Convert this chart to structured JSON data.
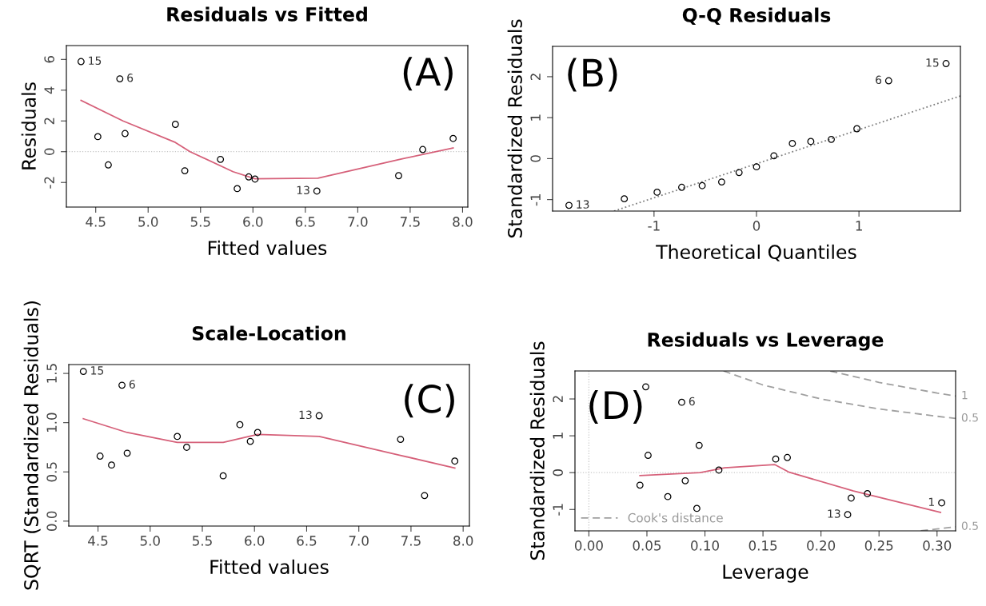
{
  "chart_data": [
    {
      "type": "scatter",
      "title": "Residuals vs Fitted",
      "xlabel": "Fitted values",
      "ylabel": "Residuals",
      "xlim": [
        4.22,
        8.05
      ],
      "ylim": [
        -3.6,
        6.9
      ],
      "xticks": [
        {
          "value": 4.5,
          "label": "4.5"
        },
        {
          "value": 5,
          "label": "5.0"
        },
        {
          "value": 5.5,
          "label": "5.5"
        },
        {
          "value": 6,
          "label": "6.0"
        },
        {
          "value": 6.5,
          "label": "6.5"
        },
        {
          "value": 7,
          "label": "7.0"
        },
        {
          "value": 7.5,
          "label": "7.5"
        },
        {
          "value": 8,
          "label": "8.0"
        }
      ],
      "yticks": [
        -2,
        0,
        2,
        4,
        6
      ],
      "grid": false,
      "series": [
        {
          "marker": "circle",
          "color": "#000000",
          "x": [
            4.36,
            4.52,
            4.62,
            4.73,
            4.78,
            5.26,
            5.35,
            5.69,
            5.85,
            5.96,
            6.02,
            6.61,
            7.39,
            7.62,
            7.91
          ],
          "values": [
            5.86,
            0.98,
            -0.86,
            4.74,
            1.18,
            1.78,
            -1.24,
            -0.5,
            -2.4,
            -1.64,
            -1.78,
            -2.56,
            -1.56,
            0.14,
            0.86
          ]
        },
        {
          "type": "line",
          "color": "#d6617a",
          "line_style": "solid",
          "x": [
            4.36,
            4.76,
            5.26,
            5.4,
            5.81,
            6.02,
            6.62,
            7.4,
            7.91
          ],
          "values": [
            3.34,
            2.0,
            0.6,
            0,
            -1.3,
            -1.76,
            -1.72,
            -0.5,
            0.24
          ]
        }
      ],
      "ref_lines": [
        {
          "axis": "y",
          "value": 0,
          "color": "#c8c8c8",
          "line_style": "dotted"
        }
      ],
      "annotations": [
        "(A)",
        {
          "text": "15",
          "x": 4.36,
          "y": 5.86
        },
        {
          "text": "6",
          "x": 4.73,
          "y": 4.74
        },
        {
          "text": "13",
          "x": 6.61,
          "y": -2.56
        }
      ]
    },
    {
      "type": "scatter",
      "title": "Q-Q Residuals",
      "xlabel": "Theoretical Quantiles",
      "ylabel": "Standardized Residuals",
      "xlim": [
        -1.99,
        1.99
      ],
      "ylim": [
        -1.28,
        2.74
      ],
      "xticks": [
        -1,
        0,
        1
      ],
      "yticks": [
        -1,
        0,
        1,
        2
      ],
      "grid": false,
      "series": [
        {
          "marker": "circle",
          "color": "#000000",
          "x": [
            -1.83,
            -1.29,
            -0.97,
            -0.73,
            -0.53,
            -0.34,
            -0.17,
            0,
            0.17,
            0.35,
            0.53,
            0.73,
            0.98,
            1.29,
            1.85
          ],
          "values": [
            -1.14,
            -0.98,
            -0.82,
            -0.7,
            -0.66,
            -0.57,
            -0.34,
            -0.2,
            0.07,
            0.37,
            0.42,
            0.47,
            0.73,
            1.9,
            2.32
          ]
        },
        {
          "type": "line",
          "color": "#808080",
          "line_style": "dotted",
          "x": [
            -1.39,
            1.99
          ],
          "values": [
            -1.28,
            1.53
          ]
        }
      ],
      "annotations": [
        "(B)",
        {
          "text": "13",
          "x": -1.83,
          "y": -1.14
        },
        {
          "text": "6",
          "x": 1.29,
          "y": 1.9
        },
        {
          "text": "15",
          "x": 1.85,
          "y": 2.32
        }
      ]
    },
    {
      "type": "scatter",
      "title": "Scale-Location",
      "xlabel": "Fitted values",
      "ylabel": "SQRT (Standardized Residuals)",
      "xlim": [
        4.22,
        8.06
      ],
      "ylim": [
        -0.05,
        1.59
      ],
      "xticks": [
        {
          "value": 4.5,
          "label": "4.5"
        },
        {
          "value": 5,
          "label": "5.0"
        },
        {
          "value": 5.5,
          "label": "5.5"
        },
        {
          "value": 6,
          "label": "6.0"
        },
        {
          "value": 6.5,
          "label": "6.5"
        },
        {
          "value": 7,
          "label": "7.0"
        },
        {
          "value": 7.5,
          "label": "7.5"
        },
        {
          "value": 8,
          "label": "8.0"
        }
      ],
      "yticks": [
        {
          "value": 0,
          "label": "0.0"
        },
        {
          "value": 0.5,
          "label": "0.5"
        },
        {
          "value": 1,
          "label": "1.0"
        },
        {
          "value": 1.5,
          "label": "1.5"
        }
      ],
      "grid": false,
      "series": [
        {
          "marker": "circle",
          "color": "#000000",
          "x": [
            4.36,
            4.52,
            4.63,
            4.73,
            4.78,
            5.26,
            5.35,
            5.7,
            5.86,
            5.96,
            6.03,
            6.62,
            7.4,
            7.63,
            7.92
          ],
          "values": [
            1.52,
            0.66,
            0.57,
            1.38,
            0.69,
            0.86,
            0.75,
            0.46,
            0.98,
            0.81,
            0.9,
            1.07,
            0.83,
            0.26,
            0.61
          ]
        },
        {
          "type": "line",
          "color": "#d6617a",
          "line_style": "solid",
          "x": [
            4.36,
            4.78,
            5.26,
            5.7,
            6.03,
            6.62,
            7.39,
            7.92
          ],
          "values": [
            1.04,
            0.9,
            0.8,
            0.8,
            0.88,
            0.86,
            0.67,
            0.54
          ]
        }
      ],
      "annotations": [
        "(C)",
        {
          "text": "15",
          "x": 4.36,
          "y": 1.52
        },
        {
          "text": "6",
          "x": 4.73,
          "y": 1.38
        },
        {
          "text": "13",
          "x": 6.62,
          "y": 1.07
        }
      ]
    },
    {
      "type": "scatter",
      "title": "Residuals vs Leverage",
      "xlabel": "Leverage",
      "ylabel": "Standardized Residuals",
      "xlim": [
        -0.012,
        0.316
      ],
      "ylim": [
        -1.58,
        2.76
      ],
      "xticks": [
        {
          "value": 0,
          "label": "0.00"
        },
        {
          "value": 0.05,
          "label": "0.05"
        },
        {
          "value": 0.1,
          "label": "0.10"
        },
        {
          "value": 0.15,
          "label": "0.15"
        },
        {
          "value": 0.2,
          "label": "0.20"
        },
        {
          "value": 0.25,
          "label": "0.25"
        },
        {
          "value": 0.3,
          "label": "0.30"
        }
      ],
      "yticks": [
        -1,
        0,
        1,
        2
      ],
      "grid": false,
      "legend": "bottom left",
      "series": [
        {
          "marker": "circle",
          "color": "#000000",
          "x": [
            0.049,
            0.051,
            0.044,
            0.068,
            0.08,
            0.083,
            0.093,
            0.095,
            0.112,
            0.161,
            0.171,
            0.223,
            0.226,
            0.24,
            0.304
          ],
          "values": [
            2.33,
            0.47,
            -0.34,
            -0.65,
            1.91,
            -0.22,
            -0.97,
            0.74,
            0.07,
            0.37,
            0.41,
            -1.14,
            -0.69,
            -0.57,
            -0.82
          ]
        },
        {
          "type": "line",
          "color": "#d6617a",
          "line_style": "solid",
          "x": [
            0.044,
            0.096,
            0.117,
            0.16,
            0.172,
            0.228,
            0.303
          ],
          "values": [
            -0.08,
            0,
            0.13,
            0.22,
            0.02,
            -0.5,
            -1.08
          ]
        },
        {
          "type": "line",
          "name": "Cook's distance",
          "color": "#a0a0a0",
          "line_style": "dashed",
          "x": [
            0.116,
            0.15,
            0.2,
            0.25,
            0.3,
            0.316
          ],
          "values": [
            2.76,
            2.38,
            2.0,
            1.73,
            1.53,
            1.47
          ]
        },
        {
          "type": "line",
          "color": "#a0a0a0",
          "line_style": "dashed",
          "x": [
            0.208,
            0.25,
            0.3,
            0.316
          ],
          "values": [
            2.76,
            2.45,
            2.16,
            2.08
          ]
        },
        {
          "type": "line",
          "color": "#a0a0a0",
          "line_style": "dashed",
          "x": [
            0.286,
            0.3,
            0.316
          ],
          "values": [
            -1.58,
            -1.53,
            -1.47
          ]
        }
      ],
      "ref_lines": [
        {
          "axis": "y",
          "value": 0,
          "color": "#c8c8c8",
          "line_style": "dotted"
        },
        {
          "axis": "x",
          "value": 0,
          "color": "#c8c8c8",
          "line_style": "dotted"
        }
      ],
      "annotations": [
        "(D)",
        {
          "text": "6",
          "x": 0.08,
          "y": 1.91
        },
        {
          "text": "13",
          "x": 0.223,
          "y": -1.14
        },
        {
          "text": "1",
          "x": 0.304,
          "y": -0.82
        },
        {
          "text": "1",
          "x": 0.316,
          "y": 2.08
        },
        {
          "text": "0.5",
          "x": 0.316,
          "y": 1.47
        },
        {
          "text": "0.5",
          "x": 0.316,
          "y": -1.47
        }
      ]
    }
  ]
}
